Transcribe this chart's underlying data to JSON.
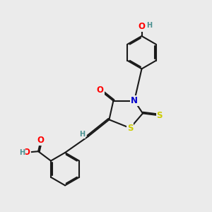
{
  "background_color": "#ebebeb",
  "bond_color": "#1a1a1a",
  "bond_width": 1.5,
  "atom_colors": {
    "O": "#ff0000",
    "N": "#0000cc",
    "S": "#cccc00",
    "H": "#4a9090"
  },
  "font_size_atom": 8.5,
  "font_size_h": 7.0,
  "xlim": [
    0,
    10
  ],
  "ylim": [
    0,
    10
  ]
}
